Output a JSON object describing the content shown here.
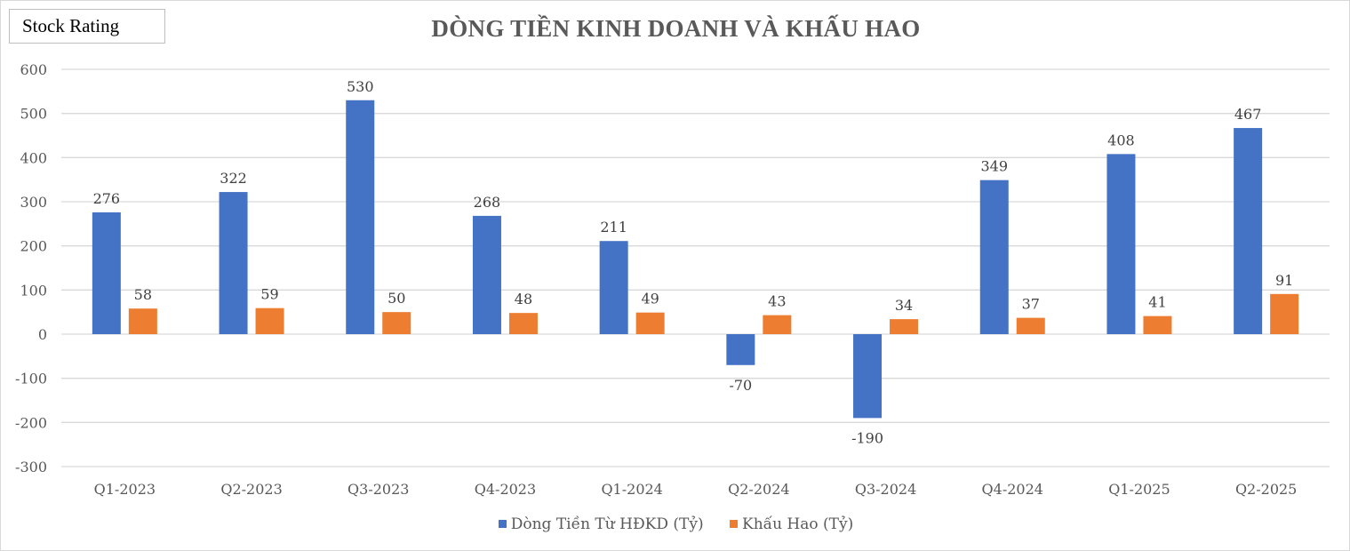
{
  "badge": "Stock Rating",
  "chart_data": {
    "type": "bar",
    "title": "DÒNG TIỀN KINH DOANH VÀ KHẤU HAO",
    "categories": [
      "Q1-2023",
      "Q2-2023",
      "Q3-2023",
      "Q4-2023",
      "Q1-2024",
      "Q2-2024",
      "Q3-2024",
      "Q4-2024",
      "Q1-2025",
      "Q2-2025"
    ],
    "series": [
      {
        "name": "Dòng Tiền Từ HĐKD (Tỷ)",
        "color": "#4472c4",
        "values": [
          276,
          322,
          530,
          268,
          211,
          -70,
          -190,
          349,
          408,
          467
        ]
      },
      {
        "name": "Khấu Hao (Tỷ)",
        "color": "#ed7d31",
        "values": [
          58,
          59,
          50,
          48,
          49,
          43,
          34,
          37,
          41,
          91
        ]
      }
    ],
    "ylim": [
      -300,
      600
    ],
    "yticks": [
      600,
      500,
      400,
      300,
      200,
      100,
      0,
      -100,
      -200,
      -300
    ],
    "grid": true,
    "legend": "bottom",
    "data_labels": true
  }
}
